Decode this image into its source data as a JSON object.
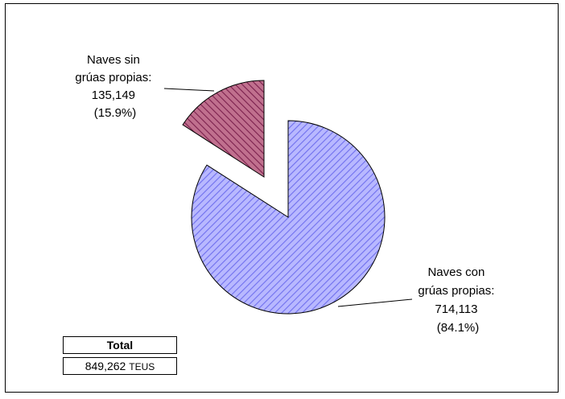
{
  "chart_data": {
    "type": "pie",
    "slices": [
      {
        "label_lines": [
          "Naves con",
          "grúas propias:",
          "714,113",
          "(84.1%)"
        ],
        "value": 714113,
        "percent": 84.1,
        "color": "#9999ff"
      },
      {
        "label_lines": [
          "Naves sin",
          "grúas propias:",
          "135,149",
          "(15.9%)"
        ],
        "value": 135149,
        "percent": 15.9,
        "color": "#993366",
        "exploded": true
      }
    ],
    "total_box": {
      "header": "Total",
      "value": "849,262",
      "unit": "TEUS"
    }
  }
}
